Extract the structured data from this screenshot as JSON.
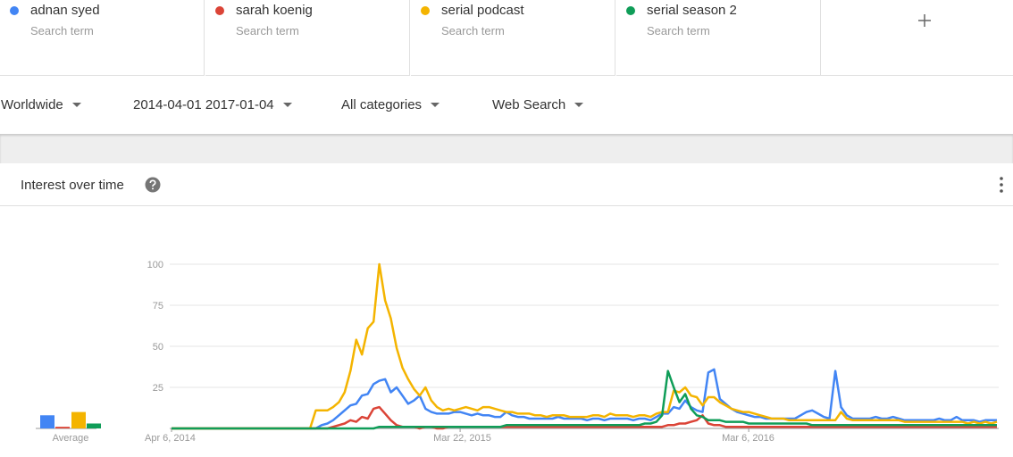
{
  "terms": [
    {
      "name": "adnan syed",
      "subtitle": "Search term"
    },
    {
      "name": "sarah koenig",
      "subtitle": "Search term"
    },
    {
      "name": "serial podcast",
      "subtitle": "Search term"
    },
    {
      "name": "serial season 2",
      "subtitle": "Search term"
    }
  ],
  "filters": [
    "Worldwide",
    "2014-04-01 2017-01-04",
    "All categories",
    "Web Search"
  ],
  "card_title": "Interest over time",
  "chart_data": {
    "type": "line",
    "categories": [
      "Apr 6, 2014",
      null,
      null,
      null,
      null,
      null,
      null,
      null,
      null,
      null,
      null,
      null,
      null,
      null,
      null,
      null,
      null,
      null,
      null,
      null,
      null,
      null,
      null,
      null,
      null,
      null,
      null,
      null,
      null,
      null,
      null,
      null,
      null,
      null,
      null,
      null,
      null,
      null,
      null,
      null,
      null,
      null,
      null,
      null,
      null,
      null,
      null,
      null,
      null,
      null,
      "Mar 22, 2015",
      null,
      null,
      null,
      null,
      null,
      null,
      null,
      null,
      null,
      null,
      null,
      null,
      null,
      null,
      null,
      null,
      null,
      null,
      null,
      null,
      null,
      null,
      null,
      null,
      null,
      null,
      null,
      null,
      null,
      null,
      null,
      null,
      null,
      null,
      null,
      null,
      null,
      null,
      null,
      null,
      null,
      null,
      null,
      null,
      null,
      null,
      null,
      null,
      null,
      "Mar 6, 2016",
      null,
      null,
      null,
      null,
      null,
      null,
      null,
      null,
      null,
      null,
      null,
      null,
      null,
      null,
      null,
      null,
      null,
      null,
      null,
      null,
      null,
      null,
      null,
      null,
      null,
      null,
      null,
      null,
      null,
      null,
      null,
      null,
      null,
      null,
      null,
      null,
      null,
      null,
      null,
      null,
      null,
      null,
      null
    ],
    "series": [
      {
        "name": "adnan syed",
        "color": "#4285f4",
        "values": [
          0,
          0,
          0,
          0,
          0,
          0,
          0,
          0,
          0,
          0,
          0,
          0,
          0,
          0,
          0,
          0,
          0,
          0,
          0,
          0,
          0,
          0,
          0,
          0,
          0,
          0,
          2,
          3,
          5,
          8,
          11,
          14,
          15,
          20,
          21,
          27,
          29,
          30,
          22,
          25,
          20,
          15,
          17,
          20,
          12,
          10,
          9,
          9,
          9,
          10,
          10,
          9,
          8,
          9,
          8,
          8,
          7,
          7,
          10,
          8,
          7,
          7,
          6,
          6,
          6,
          6,
          6,
          7,
          6,
          6,
          6,
          6,
          5,
          6,
          6,
          5,
          6,
          6,
          6,
          6,
          5,
          6,
          6,
          5,
          7,
          9,
          9,
          13,
          12,
          17,
          13,
          11,
          10,
          34,
          36,
          18,
          15,
          12,
          10,
          9,
          8,
          7,
          7,
          6,
          6,
          6,
          6,
          6,
          6,
          8,
          10,
          11,
          9,
          7,
          6,
          35,
          13,
          8,
          6,
          6,
          6,
          6,
          7,
          6,
          6,
          7,
          6,
          5,
          5,
          5,
          5,
          5,
          5,
          6,
          5,
          5,
          7,
          5,
          5,
          5,
          4,
          5,
          5,
          5
        ]
      },
      {
        "name": "sarah koenig",
        "color": "#db4437",
        "values": [
          0,
          0,
          0,
          0,
          0,
          0,
          0,
          0,
          0,
          0,
          0,
          0,
          0,
          0,
          0,
          0,
          0,
          0,
          0,
          0,
          0,
          0,
          0,
          0,
          0,
          0,
          0,
          0,
          1,
          2,
          3,
          5,
          4,
          7,
          6,
          12,
          13,
          9,
          5,
          2,
          1,
          1,
          1,
          0,
          1,
          1,
          0,
          0,
          1,
          1,
          1,
          1,
          1,
          1,
          1,
          1,
          1,
          1,
          1,
          1,
          1,
          1,
          1,
          1,
          1,
          1,
          1,
          1,
          1,
          1,
          1,
          1,
          1,
          1,
          1,
          1,
          1,
          1,
          1,
          1,
          1,
          1,
          1,
          1,
          1,
          1,
          2,
          2,
          3,
          3,
          4,
          5,
          8,
          3,
          2,
          2,
          1,
          1,
          1,
          1,
          1,
          1,
          1,
          1,
          1,
          1,
          1,
          1,
          1,
          1,
          1,
          1,
          1,
          1,
          1,
          1,
          1,
          1,
          1,
          1,
          1,
          1,
          1,
          1,
          1,
          1,
          1,
          1,
          1,
          1,
          1,
          1,
          1,
          1,
          1,
          1,
          1,
          1,
          1,
          1,
          1,
          1,
          1,
          1
        ]
      },
      {
        "name": "serial podcast",
        "color": "#f4b400",
        "values": [
          0,
          0,
          0,
          0,
          0,
          0,
          0,
          0,
          0,
          0,
          0,
          0,
          0,
          0,
          0,
          0,
          0,
          0,
          0,
          0,
          0,
          0,
          0,
          0,
          0,
          11,
          11,
          11,
          13,
          16,
          22,
          35,
          54,
          45,
          61,
          65,
          100,
          78,
          67,
          49,
          37,
          30,
          24,
          20,
          25,
          17,
          13,
          11,
          12,
          11,
          12,
          13,
          12,
          11,
          13,
          13,
          12,
          11,
          10,
          10,
          9,
          9,
          9,
          8,
          8,
          7,
          8,
          8,
          8,
          7,
          7,
          7,
          7,
          8,
          8,
          7,
          9,
          8,
          8,
          8,
          7,
          8,
          8,
          7,
          9,
          10,
          10,
          23,
          22,
          25,
          20,
          19,
          14,
          19,
          19,
          16,
          14,
          12,
          11,
          10,
          10,
          9,
          8,
          7,
          6,
          6,
          6,
          5,
          5,
          5,
          5,
          5,
          5,
          5,
          5,
          5,
          10,
          6,
          5,
          5,
          5,
          5,
          5,
          5,
          5,
          5,
          5,
          4,
          4,
          4,
          4,
          4,
          4,
          4,
          4,
          4,
          4,
          4,
          3,
          4,
          3,
          4,
          3,
          4
        ]
      },
      {
        "name": "serial season 2",
        "color": "#0f9d58",
        "values": [
          0,
          0,
          0,
          0,
          0,
          0,
          0,
          0,
          0,
          0,
          0,
          0,
          0,
          0,
          0,
          0,
          0,
          0,
          0,
          0,
          0,
          0,
          0,
          0,
          0,
          0,
          0,
          0,
          0,
          0,
          0,
          0,
          0,
          0,
          0,
          0,
          1,
          1,
          1,
          1,
          1,
          1,
          1,
          1,
          1,
          1,
          1,
          1,
          1,
          1,
          1,
          1,
          1,
          1,
          1,
          1,
          1,
          1,
          2,
          2,
          2,
          2,
          2,
          2,
          2,
          2,
          2,
          2,
          2,
          2,
          2,
          2,
          2,
          2,
          2,
          2,
          2,
          2,
          2,
          2,
          2,
          2,
          3,
          3,
          4,
          8,
          35,
          25,
          16,
          21,
          12,
          8,
          7,
          5,
          5,
          5,
          4,
          4,
          4,
          4,
          3,
          3,
          3,
          3,
          3,
          3,
          3,
          3,
          3,
          3,
          3,
          2,
          2,
          2,
          2,
          2,
          2,
          2,
          2,
          2,
          2,
          2,
          2,
          2,
          2,
          2,
          2,
          2,
          2,
          2,
          2,
          2,
          2,
          2,
          2,
          2,
          2,
          2,
          2,
          2,
          2,
          2,
          2,
          2
        ]
      }
    ],
    "ylim": [
      0,
      100
    ],
    "yticks": [
      25,
      50,
      75,
      100
    ],
    "grid": true,
    "averages": {
      "label": "Average",
      "values": [
        8,
        1,
        10,
        3
      ]
    }
  }
}
